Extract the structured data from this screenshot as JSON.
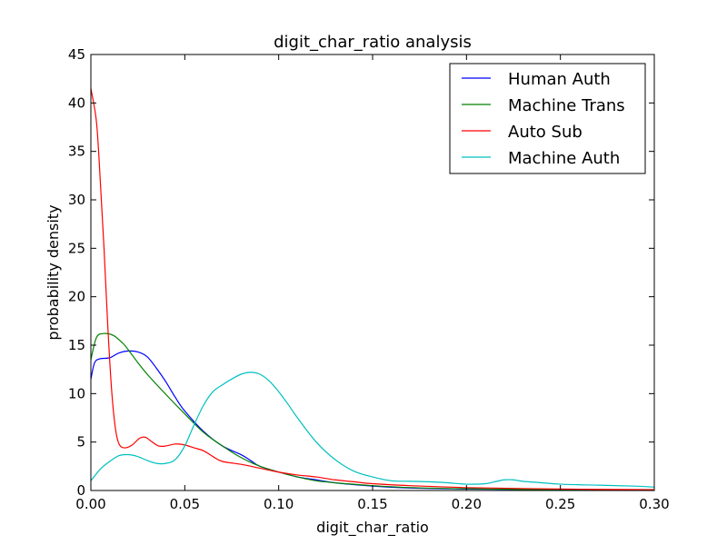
{
  "chart_data": {
    "type": "line",
    "title": "digit_char_ratio analysis",
    "xlabel": "digit_char_ratio",
    "ylabel": "probability density",
    "xlim": [
      0.0,
      0.3
    ],
    "ylim": [
      0,
      45
    ],
    "xticks": [
      0.0,
      0.05,
      0.1,
      0.15,
      0.2,
      0.25,
      0.3
    ],
    "xtick_labels": [
      "0.00",
      "0.05",
      "0.10",
      "0.15",
      "0.20",
      "0.25",
      "0.30"
    ],
    "yticks": [
      0,
      5,
      10,
      15,
      20,
      25,
      30,
      35,
      40,
      45
    ],
    "ytick_labels": [
      "0",
      "5",
      "10",
      "15",
      "20",
      "25",
      "30",
      "35",
      "40",
      "45"
    ],
    "grid": false,
    "legend_position": "top-right",
    "series": [
      {
        "name": "Human Auth",
        "color": "#0000ff",
        "points": [
          [
            0.0,
            11.5
          ],
          [
            0.002,
            13.2
          ],
          [
            0.005,
            13.6
          ],
          [
            0.01,
            13.7
          ],
          [
            0.015,
            14.2
          ],
          [
            0.02,
            14.4
          ],
          [
            0.025,
            14.3
          ],
          [
            0.03,
            13.8
          ],
          [
            0.035,
            12.6
          ],
          [
            0.04,
            11.2
          ],
          [
            0.045,
            9.6
          ],
          [
            0.05,
            8.2
          ],
          [
            0.06,
            6.1
          ],
          [
            0.07,
            4.6
          ],
          [
            0.08,
            3.7
          ],
          [
            0.085,
            3.1
          ],
          [
            0.09,
            2.5
          ],
          [
            0.1,
            1.9
          ],
          [
            0.11,
            1.4
          ],
          [
            0.12,
            1.1
          ],
          [
            0.13,
            0.8
          ],
          [
            0.15,
            0.45
          ],
          [
            0.17,
            0.25
          ],
          [
            0.2,
            0.15
          ],
          [
            0.25,
            0.08
          ],
          [
            0.3,
            0.05
          ]
        ]
      },
      {
        "name": "Machine Trans",
        "color": "#008000",
        "points": [
          [
            0.0,
            13.5
          ],
          [
            0.003,
            15.8
          ],
          [
            0.007,
            16.2
          ],
          [
            0.012,
            16.0
          ],
          [
            0.017,
            15.2
          ],
          [
            0.02,
            14.5
          ],
          [
            0.025,
            13.2
          ],
          [
            0.03,
            12.0
          ],
          [
            0.04,
            9.9
          ],
          [
            0.05,
            7.9
          ],
          [
            0.06,
            6.0
          ],
          [
            0.07,
            4.6
          ],
          [
            0.08,
            3.4
          ],
          [
            0.09,
            2.5
          ],
          [
            0.1,
            1.9
          ],
          [
            0.11,
            1.4
          ],
          [
            0.12,
            1.0
          ],
          [
            0.13,
            0.8
          ],
          [
            0.15,
            0.5
          ],
          [
            0.17,
            0.3
          ],
          [
            0.2,
            0.18
          ],
          [
            0.25,
            0.08
          ],
          [
            0.3,
            0.05
          ]
        ]
      },
      {
        "name": "Auto Sub",
        "color": "#ff0000",
        "points": [
          [
            0.0,
            41.5
          ],
          [
            0.003,
            38.0
          ],
          [
            0.005,
            32.0
          ],
          [
            0.007,
            25.0
          ],
          [
            0.009,
            17.0
          ],
          [
            0.011,
            10.5
          ],
          [
            0.013,
            6.5
          ],
          [
            0.015,
            4.8
          ],
          [
            0.018,
            4.4
          ],
          [
            0.022,
            4.7
          ],
          [
            0.026,
            5.4
          ],
          [
            0.029,
            5.5
          ],
          [
            0.032,
            5.1
          ],
          [
            0.036,
            4.6
          ],
          [
            0.04,
            4.6
          ],
          [
            0.045,
            4.8
          ],
          [
            0.05,
            4.7
          ],
          [
            0.055,
            4.4
          ],
          [
            0.06,
            4.1
          ],
          [
            0.065,
            3.5
          ],
          [
            0.07,
            3.0
          ],
          [
            0.08,
            2.7
          ],
          [
            0.09,
            2.3
          ],
          [
            0.1,
            1.9
          ],
          [
            0.11,
            1.6
          ],
          [
            0.12,
            1.4
          ],
          [
            0.13,
            1.1
          ],
          [
            0.14,
            0.9
          ],
          [
            0.15,
            0.7
          ],
          [
            0.17,
            0.5
          ],
          [
            0.2,
            0.3
          ],
          [
            0.25,
            0.15
          ],
          [
            0.3,
            0.08
          ]
        ]
      },
      {
        "name": "Machine Auth",
        "color": "#00bfbf",
        "points": [
          [
            0.0,
            1.0
          ],
          [
            0.005,
            2.2
          ],
          [
            0.01,
            3.0
          ],
          [
            0.015,
            3.6
          ],
          [
            0.02,
            3.7
          ],
          [
            0.025,
            3.5
          ],
          [
            0.03,
            3.1
          ],
          [
            0.035,
            2.8
          ],
          [
            0.04,
            2.8
          ],
          [
            0.045,
            3.2
          ],
          [
            0.05,
            4.6
          ],
          [
            0.055,
            6.8
          ],
          [
            0.06,
            8.8
          ],
          [
            0.065,
            10.2
          ],
          [
            0.07,
            10.9
          ],
          [
            0.075,
            11.5
          ],
          [
            0.08,
            12.0
          ],
          [
            0.085,
            12.2
          ],
          [
            0.09,
            12.0
          ],
          [
            0.095,
            11.3
          ],
          [
            0.1,
            10.2
          ],
          [
            0.105,
            8.9
          ],
          [
            0.11,
            7.5
          ],
          [
            0.12,
            5.0
          ],
          [
            0.13,
            3.2
          ],
          [
            0.14,
            2.0
          ],
          [
            0.15,
            1.4
          ],
          [
            0.16,
            1.0
          ],
          [
            0.17,
            0.95
          ],
          [
            0.18,
            0.9
          ],
          [
            0.19,
            0.8
          ],
          [
            0.2,
            0.65
          ],
          [
            0.21,
            0.7
          ],
          [
            0.215,
            0.9
          ],
          [
            0.22,
            1.1
          ],
          [
            0.225,
            1.1
          ],
          [
            0.23,
            0.95
          ],
          [
            0.24,
            0.8
          ],
          [
            0.25,
            0.65
          ],
          [
            0.27,
            0.55
          ],
          [
            0.29,
            0.45
          ],
          [
            0.3,
            0.35
          ]
        ]
      }
    ]
  }
}
